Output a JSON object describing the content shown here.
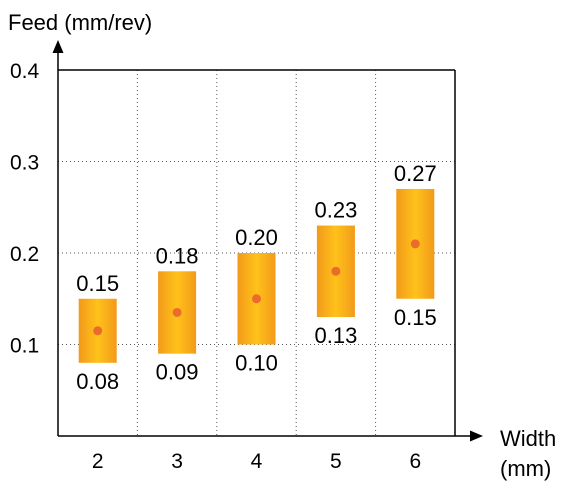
{
  "chart_data": {
    "type": "bar",
    "subtype": "range-bar",
    "title": "",
    "ylabel": "Feed (mm/rev)",
    "xlabel": [
      "Width",
      "(mm)"
    ],
    "categories": [
      "2",
      "3",
      "4",
      "5",
      "6"
    ],
    "y_ticks": [
      "0.1",
      "0.2",
      "0.3",
      "0.4"
    ],
    "ylim": [
      0,
      0.4
    ],
    "grid": true,
    "series": [
      {
        "low": [
          0.08,
          0.09,
          0.1,
          0.13,
          0.15
        ],
        "high": [
          0.15,
          0.18,
          0.2,
          0.23,
          0.27
        ],
        "mid": [
          0.115,
          0.135,
          0.15,
          0.18,
          0.21
        ],
        "low_labels": [
          "0.08",
          "0.09",
          "0.10",
          "0.13",
          "0.15"
        ],
        "high_labels": [
          "0.15",
          "0.18",
          "0.20",
          "0.23",
          "0.27"
        ]
      }
    ],
    "colors": {
      "bar_edge": "#f29a1a",
      "bar_center": "#ffc21a",
      "marker": "#ec6a2a"
    }
  }
}
